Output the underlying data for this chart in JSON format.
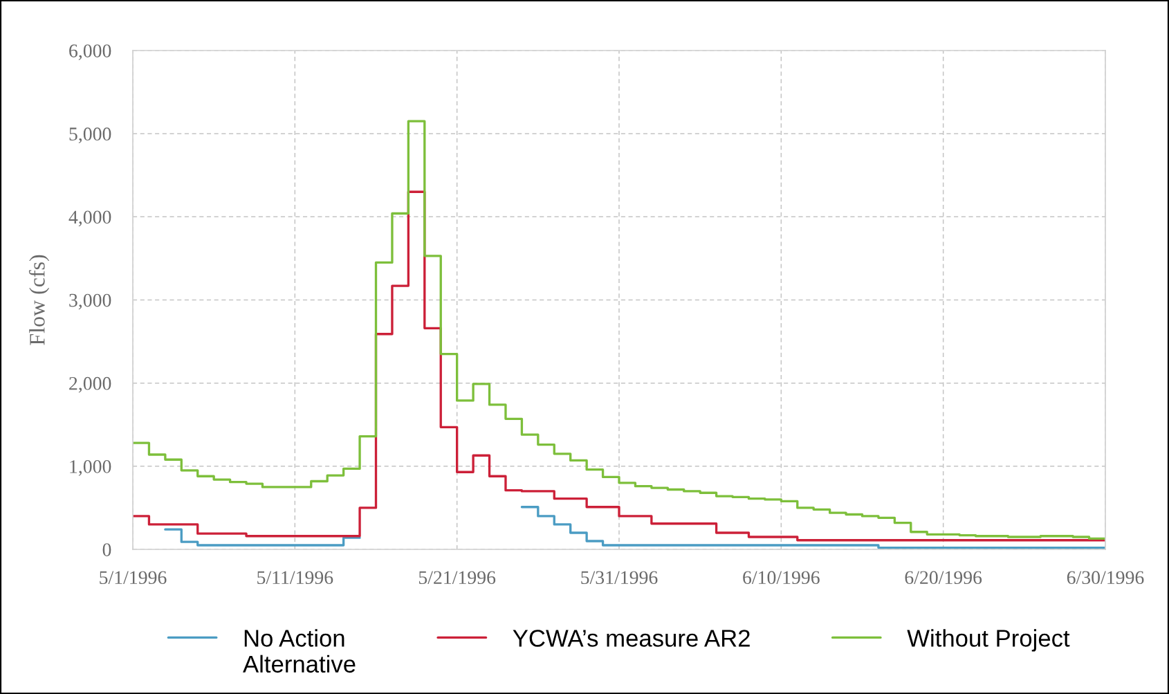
{
  "chart_data": {
    "type": "step",
    "ylabel": "Flow (cfs)",
    "x": [
      "1996-05-01",
      "1996-05-02",
      "1996-05-03",
      "1996-05-04",
      "1996-05-05",
      "1996-05-06",
      "1996-05-07",
      "1996-05-08",
      "1996-05-09",
      "1996-05-10",
      "1996-05-11",
      "1996-05-12",
      "1996-05-13",
      "1996-05-14",
      "1996-05-15",
      "1996-05-16",
      "1996-05-17",
      "1996-05-18",
      "1996-05-19",
      "1996-05-20",
      "1996-05-21",
      "1996-05-22",
      "1996-05-23",
      "1996-05-24",
      "1996-05-25",
      "1996-05-26",
      "1996-05-27",
      "1996-05-28",
      "1996-05-29",
      "1996-05-30",
      "1996-05-31",
      "1996-06-01",
      "1996-06-02",
      "1996-06-03",
      "1996-06-04",
      "1996-06-05",
      "1996-06-06",
      "1996-06-07",
      "1996-06-08",
      "1996-06-09",
      "1996-06-10",
      "1996-06-11",
      "1996-06-12",
      "1996-06-13",
      "1996-06-14",
      "1996-06-15",
      "1996-06-16",
      "1996-06-17",
      "1996-06-18",
      "1996-06-19",
      "1996-06-20",
      "1996-06-21",
      "1996-06-22",
      "1996-06-23",
      "1996-06-24",
      "1996-06-25",
      "1996-06-26",
      "1996-06-27",
      "1996-06-28",
      "1996-06-29",
      "1996-06-30"
    ],
    "series": [
      {
        "name": "No Action\nAlternative",
        "color": "#4b9cc3",
        "values": [
          null,
          null,
          240,
          90,
          50,
          50,
          50,
          50,
          50,
          50,
          50,
          50,
          50,
          140,
          null,
          null,
          null,
          null,
          null,
          null,
          null,
          null,
          null,
          null,
          510,
          400,
          300,
          200,
          100,
          50,
          50,
          50,
          50,
          50,
          50,
          50,
          50,
          50,
          50,
          50,
          50,
          50,
          50,
          50,
          50,
          50,
          20,
          20,
          20,
          20,
          20,
          20,
          20,
          20,
          20,
          20,
          20,
          20,
          20,
          20,
          20
        ]
      },
      {
        "name": "YCWA’s measure AR2",
        "color": "#cc2038",
        "values": [
          400,
          300,
          300,
          300,
          190,
          190,
          190,
          160,
          160,
          160,
          160,
          160,
          160,
          160,
          500,
          2590,
          3170,
          4300,
          2660,
          1470,
          930,
          1130,
          880,
          710,
          700,
          700,
          610,
          610,
          510,
          510,
          400,
          400,
          310,
          310,
          310,
          310,
          200,
          200,
          150,
          150,
          150,
          110,
          110,
          110,
          110,
          110,
          110,
          110,
          110,
          110,
          110,
          110,
          110,
          110,
          110,
          110,
          110,
          110,
          110,
          110,
          110
        ]
      },
      {
        "name": "Without Project",
        "color": "#7dbf3b",
        "values": [
          1280,
          1140,
          1080,
          950,
          880,
          840,
          810,
          790,
          750,
          750,
          750,
          820,
          890,
          970,
          1360,
          3450,
          4040,
          5150,
          3530,
          2350,
          1790,
          1990,
          1740,
          1570,
          1380,
          1260,
          1150,
          1070,
          960,
          870,
          800,
          760,
          740,
          720,
          700,
          680,
          640,
          630,
          610,
          600,
          580,
          500,
          480,
          440,
          420,
          400,
          380,
          320,
          210,
          180,
          180,
          170,
          160,
          160,
          150,
          150,
          160,
          160,
          150,
          130,
          130
        ]
      }
    ],
    "xlim": [
      "1996-05-01",
      "1996-06-30"
    ],
    "xticks": [
      {
        "value": "1996-05-01",
        "label": "5/1/1996"
      },
      {
        "value": "1996-05-11",
        "label": "5/11/1996"
      },
      {
        "value": "1996-05-21",
        "label": "5/21/1996"
      },
      {
        "value": "1996-05-31",
        "label": "5/31/1996"
      },
      {
        "value": "1996-06-10",
        "label": "6/10/1996"
      },
      {
        "value": "1996-06-20",
        "label": "6/20/1996"
      },
      {
        "value": "1996-06-30",
        "label": "6/30/1996"
      }
    ],
    "ylim": [
      0,
      6000
    ],
    "yticks": [
      0,
      {
        "value": 1000,
        "label": "1,000"
      },
      {
        "value": 2000,
        "label": "2,000"
      },
      {
        "value": 3000,
        "label": "3,000"
      },
      {
        "value": 4000,
        "label": "4,000"
      },
      {
        "value": 5000,
        "label": "5,000"
      },
      {
        "value": 6000,
        "label": "6,000"
      }
    ],
    "grid": true,
    "legend": "bottom",
    "line_style": "solid"
  }
}
